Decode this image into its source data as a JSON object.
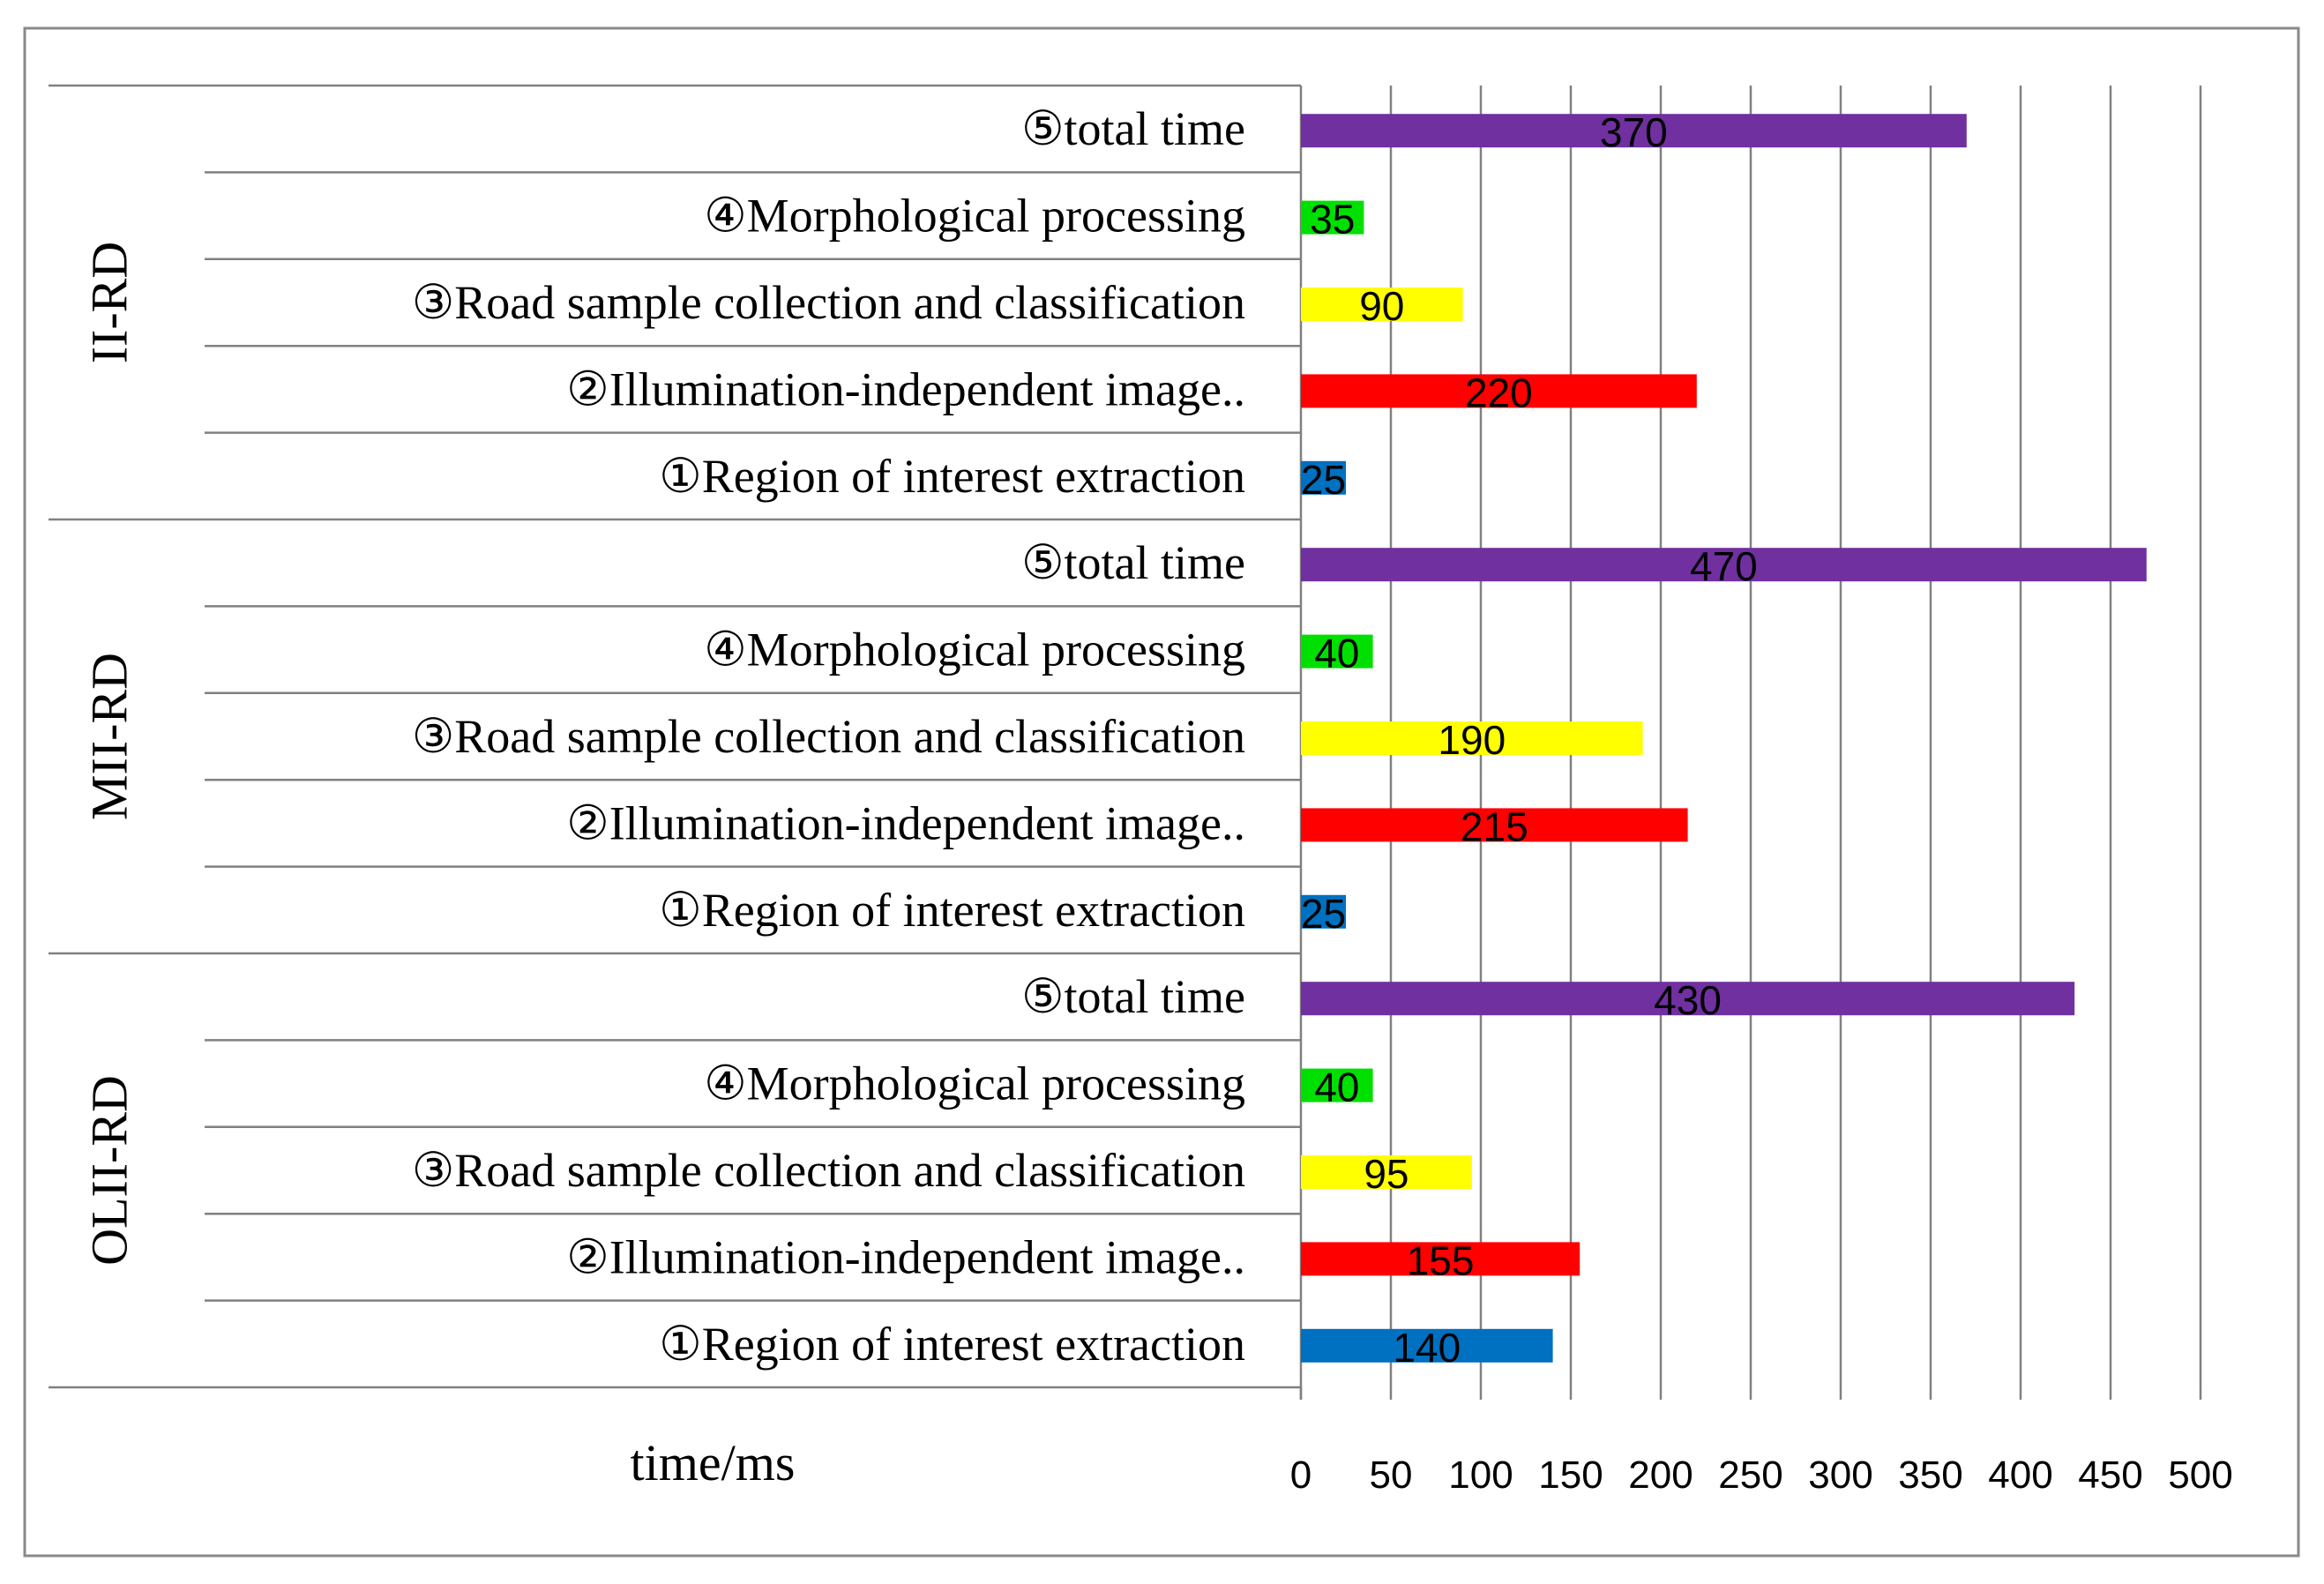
{
  "chart_data": {
    "type": "bar",
    "orientation": "horizontal",
    "xlabel": "time/ms",
    "xlim": [
      0,
      500
    ],
    "xticks": [
      "0",
      "50",
      "100",
      "150",
      "200",
      "250",
      "300",
      "350",
      "400",
      "450",
      "500"
    ],
    "grid": true,
    "groups": [
      {
        "name": "II-RD",
        "bars": [
          {
            "label": "⑤total time",
            "value": 370,
            "value_label": "370",
            "color": "#7030A0"
          },
          {
            "label": "④Morphological processing",
            "value": 35,
            "value_label": "35",
            "color": "#00E000"
          },
          {
            "label": "③Road sample collection and classification",
            "value": 90,
            "value_label": "90",
            "color": "#FFFF00"
          },
          {
            "label": "②Illumination-independent image..",
            "value": 220,
            "value_label": "220",
            "color": "#FF0000"
          },
          {
            "label": "①Region of interest extraction",
            "value": 25,
            "value_label": "25",
            "color": "#0070C0"
          }
        ]
      },
      {
        "name": "MII-RD",
        "bars": [
          {
            "label": "⑤total time",
            "value": 470,
            "value_label": "470",
            "color": "#7030A0"
          },
          {
            "label": "④Morphological processing",
            "value": 40,
            "value_label": "40",
            "color": "#00E000"
          },
          {
            "label": "③Road sample collection and classification",
            "value": 190,
            "value_label": "190",
            "color": "#FFFF00"
          },
          {
            "label": "②Illumination-independent image..",
            "value": 215,
            "value_label": "215",
            "color": "#FF0000"
          },
          {
            "label": "①Region of interest extraction",
            "value": 25,
            "value_label": "25",
            "color": "#0070C0"
          }
        ]
      },
      {
        "name": "OLII-RD",
        "bars": [
          {
            "label": "⑤total time",
            "value": 430,
            "value_label": "430",
            "color": "#7030A0"
          },
          {
            "label": "④Morphological processing",
            "value": 40,
            "value_label": "40",
            "color": "#00E000"
          },
          {
            "label": "③Road sample collection and classification",
            "value": 95,
            "value_label": "95",
            "color": "#FFFF00"
          },
          {
            "label": "②Illumination-independent image..",
            "value": 155,
            "value_label": "155",
            "color": "#FF0000"
          },
          {
            "label": "①Region of interest extraction",
            "value": 140,
            "value_label": "140",
            "color": "#0070C0"
          }
        ]
      }
    ]
  }
}
